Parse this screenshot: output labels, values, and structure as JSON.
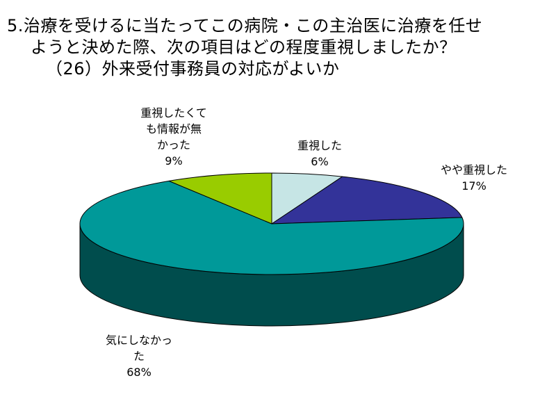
{
  "title": {
    "line1": "5.治療を受けるに当たってこの病院・この主治医に治療を任せ",
    "line2": "ようと決めた際、次の項目はどの程度重視しましたか？",
    "line3": "（26）外来受付事務員の対応がよいか"
  },
  "chart_data": {
    "type": "pie",
    "title": "5.治療を受けるに当たってこの病院・この主治医に治療を任せようと決めた際、次の項目はどの程度重視しましたか？（26）外来受付事務員の対応がよいか",
    "three_d": true,
    "slices": [
      {
        "label": "重視した",
        "label_lines": [
          "重視した"
        ],
        "value": 6,
        "value_label": "6%",
        "color": "#c6e5e5"
      },
      {
        "label": "やや重視した",
        "label_lines": [
          "やや重視した"
        ],
        "value": 17,
        "value_label": "17%",
        "color": "#333399"
      },
      {
        "label": "気にしなかった",
        "label_lines": [
          "気にしなかっ",
          "た"
        ],
        "value": 68,
        "value_label": "68%",
        "color": "#009999"
      },
      {
        "label": "重視したくても情報が無かった",
        "label_lines": [
          "重視したくて",
          "も情報が無",
          "かった"
        ],
        "value": 9,
        "value_label": "9%",
        "color": "#99cc00"
      }
    ]
  }
}
